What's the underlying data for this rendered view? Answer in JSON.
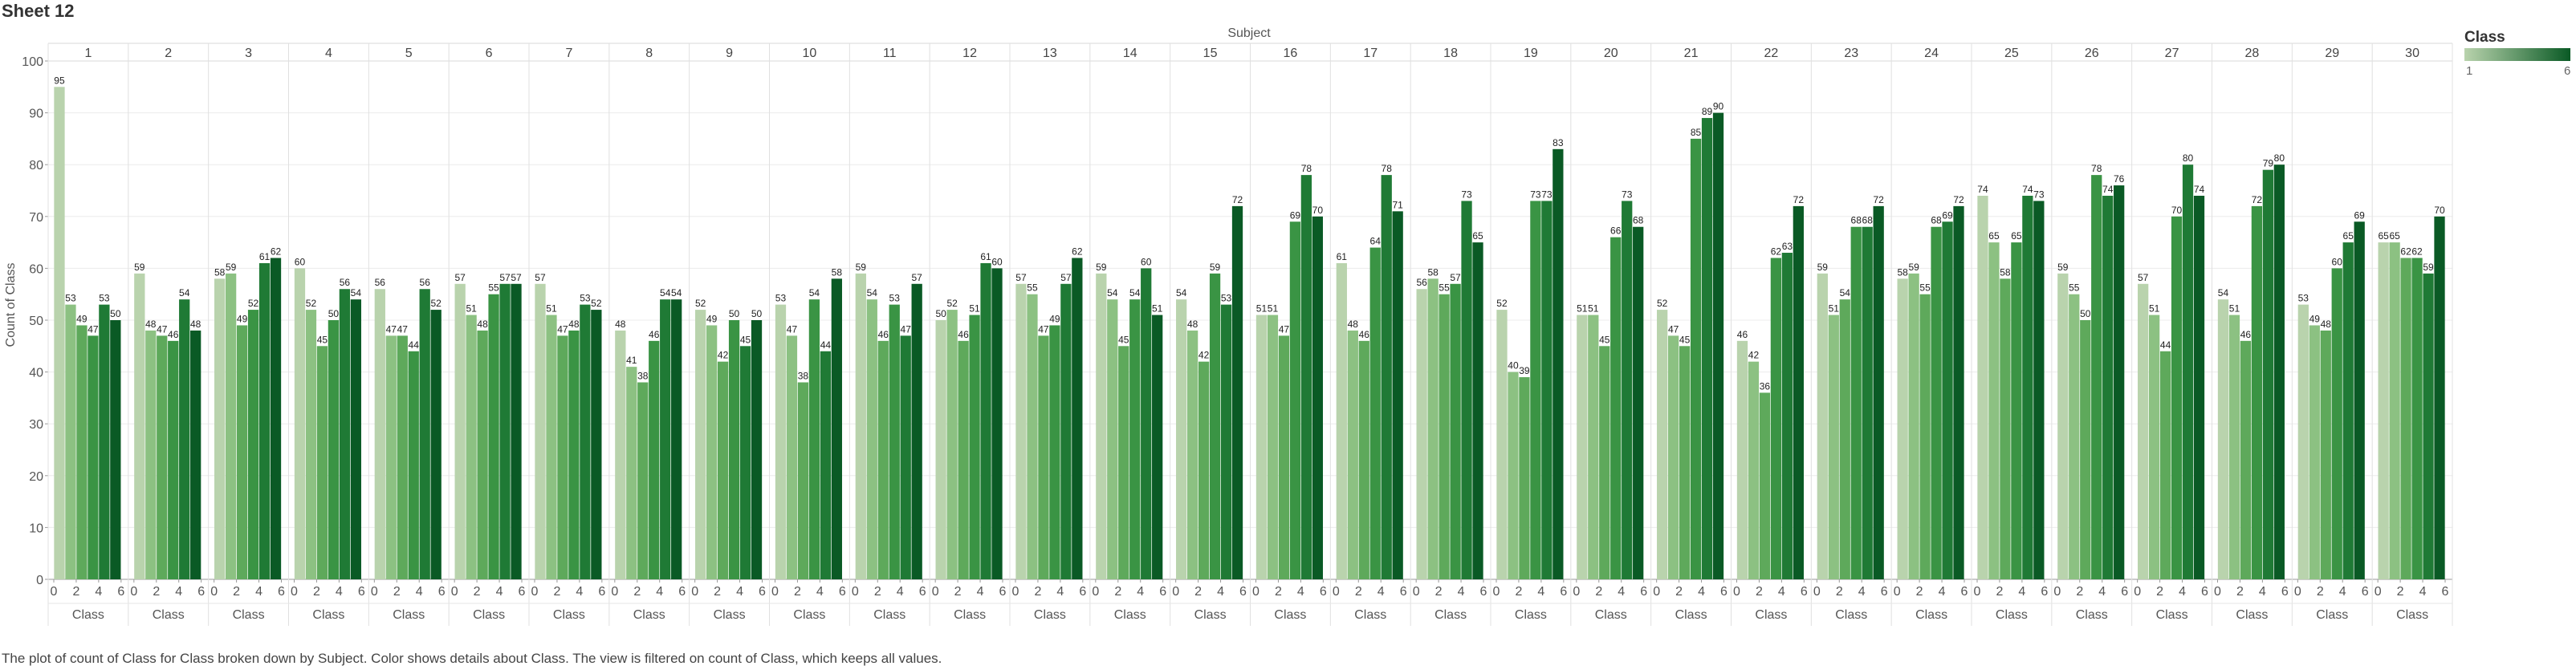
{
  "sheet_title": "Sheet 12",
  "caption": "The plot of count of Class for Class broken down by Subject.  Color shows details about Class. The view is filtered on count of Class, which keeps all values.",
  "legend": {
    "title": "Class",
    "min_label": "1",
    "max_label": "6",
    "color_low": "#b9d3ad",
    "color_high": "#0a5a25"
  },
  "chart_data": {
    "type": "bar",
    "column_header": "Subject",
    "subjects": [
      "1",
      "2",
      "3",
      "4",
      "5",
      "6",
      "7",
      "8",
      "9",
      "10",
      "11",
      "12",
      "13",
      "14",
      "15",
      "16",
      "17",
      "18",
      "19",
      "20",
      "21",
      "22",
      "23",
      "24",
      "25",
      "26",
      "27",
      "28",
      "29",
      "30"
    ],
    "x_field_label": "Class",
    "x_ticks": [
      "0",
      "2",
      "4",
      "6"
    ],
    "x_range": [
      0,
      6
    ],
    "classes": [
      1,
      2,
      3,
      4,
      5,
      6
    ],
    "ylabel": "Count of Class",
    "ylim": [
      0,
      100
    ],
    "y_ticks": [
      "0",
      "10",
      "20",
      "30",
      "40",
      "50",
      "60",
      "70",
      "80",
      "90",
      "100"
    ],
    "values": [
      [
        95,
        53,
        49,
        47,
        53,
        50
      ],
      [
        59,
        48,
        47,
        46,
        54,
        48
      ],
      [
        58,
        59,
        49,
        52,
        61,
        62
      ],
      [
        60,
        52,
        45,
        50,
        56,
        54
      ],
      [
        56,
        47,
        47,
        44,
        56,
        52
      ],
      [
        57,
        51,
        48,
        55,
        57,
        57
      ],
      [
        57,
        51,
        47,
        48,
        53,
        52
      ],
      [
        48,
        41,
        38,
        46,
        54,
        54
      ],
      [
        52,
        49,
        42,
        50,
        45,
        50
      ],
      [
        53,
        47,
        38,
        54,
        44,
        58
      ],
      [
        59,
        54,
        46,
        53,
        47,
        57
      ],
      [
        50,
        52,
        46,
        51,
        61,
        60
      ],
      [
        57,
        55,
        47,
        49,
        57,
        62
      ],
      [
        59,
        54,
        45,
        54,
        60,
        51
      ],
      [
        54,
        48,
        42,
        59,
        53,
        72
      ],
      [
        51,
        51,
        47,
        69,
        78,
        70
      ],
      [
        61,
        48,
        46,
        64,
        78,
        71
      ],
      [
        56,
        58,
        55,
        57,
        73,
        65
      ],
      [
        52,
        40,
        39,
        73,
        73,
        83
      ],
      [
        51,
        51,
        45,
        66,
        73,
        68
      ],
      [
        52,
        47,
        45,
        85,
        89,
        90
      ],
      [
        46,
        42,
        36,
        62,
        63,
        72
      ],
      [
        59,
        51,
        54,
        68,
        68,
        72
      ],
      [
        58,
        59,
        55,
        68,
        69,
        72
      ],
      [
        74,
        65,
        58,
        65,
        74,
        73
      ],
      [
        59,
        55,
        50,
        78,
        74,
        76
      ],
      [
        57,
        51,
        44,
        70,
        80,
        74
      ],
      [
        54,
        51,
        46,
        72,
        79,
        80
      ],
      [
        53,
        49,
        48,
        60,
        65,
        69
      ],
      [
        65,
        65,
        62,
        62,
        59,
        70
      ]
    ],
    "bar_colors": [
      "#b9d3ad",
      "#8cc182",
      "#5ea95b",
      "#3a9444",
      "#1f7a35",
      "#0a5a25"
    ],
    "grid": true
  }
}
